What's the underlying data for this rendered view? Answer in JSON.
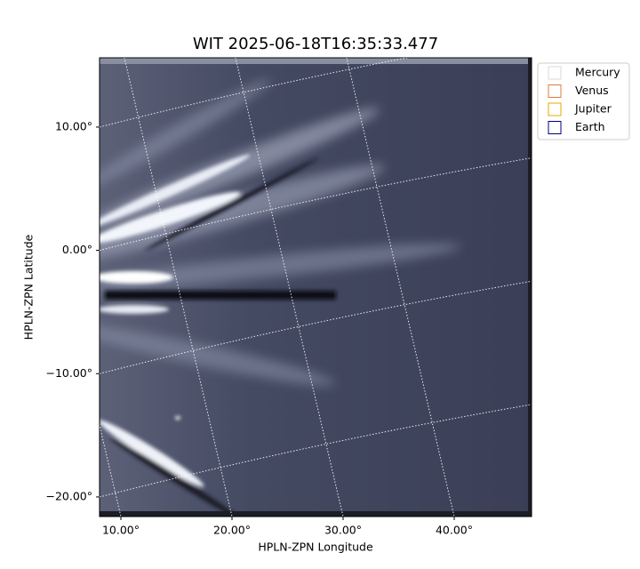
{
  "chart_data": {
    "type": "image",
    "title": "WIT 2025-06-18T16:35:33.477",
    "xlabel": "HPLN-ZPN Longitude",
    "ylabel": "HPLN-ZPN Latitude",
    "xlim": [
      8.08,
      46.96
    ],
    "ylim": [
      -21.59,
      15.62
    ],
    "xticks": [
      {
        "value": 10,
        "label": "10.00°"
      },
      {
        "value": 20,
        "label": "20.00°"
      },
      {
        "value": 30,
        "label": "30.00°"
      },
      {
        "value": 40,
        "label": "40.00°"
      }
    ],
    "yticks": [
      {
        "value": -20,
        "label": "−20.00°"
      },
      {
        "value": -10,
        "label": "−10.00°"
      },
      {
        "value": 0,
        "label": "0.00°"
      },
      {
        "value": 10,
        "label": "10.00°"
      }
    ],
    "grid": true,
    "legend": "outside upper right",
    "series": [
      {
        "name": "Mercury",
        "color": "#d9d9d9"
      },
      {
        "name": "Venus",
        "color": "#e07b3a"
      },
      {
        "name": "Jupiter",
        "color": "#e6a800"
      },
      {
        "name": "Earth",
        "color": "#000080"
      }
    ]
  }
}
